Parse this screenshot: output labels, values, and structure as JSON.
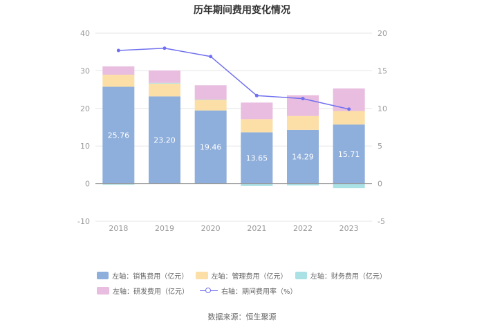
{
  "chart_data": {
    "type": "bar",
    "title": "历年期间费用变化情况",
    "categories": [
      "2018",
      "2019",
      "2020",
      "2021",
      "2022",
      "2023"
    ],
    "left_axis": {
      "ylim": [
        -10,
        40
      ],
      "ticks": [
        "-10",
        "0",
        "10",
        "20",
        "30",
        "40"
      ],
      "tick_values": [
        -10,
        0,
        10,
        20,
        30,
        40
      ]
    },
    "right_axis": {
      "ylim": [
        -5,
        20
      ],
      "ticks": [
        "-5",
        "0",
        "5",
        "10",
        "15",
        "20"
      ],
      "tick_values": [
        -5,
        0,
        5,
        10,
        15,
        20
      ]
    },
    "series": [
      {
        "name": "左轴：销售费用（亿元）",
        "kind": "bar",
        "axis": "left",
        "color": "#8eaedb",
        "values": [
          25.76,
          23.2,
          19.46,
          13.65,
          14.29,
          15.71
        ],
        "labels": [
          "25.76",
          "23.20",
          "19.46",
          "13.65",
          "14.29",
          "15.71"
        ]
      },
      {
        "name": "左轴：管理费用（亿元）",
        "kind": "bar",
        "axis": "left",
        "color": "#fbdfa6",
        "values": [
          3.2,
          3.4,
          2.8,
          3.5,
          3.7,
          3.6
        ]
      },
      {
        "name": "左轴：财务费用（亿元）",
        "kind": "bar",
        "axis": "left",
        "color": "#a9e1e5",
        "values": [
          -0.3,
          0.2,
          0.1,
          -0.6,
          -0.5,
          -1.2
        ]
      },
      {
        "name": "左轴：研发费用（亿元）",
        "kind": "bar",
        "axis": "left",
        "color": "#e8bddf",
        "values": [
          2.2,
          3.3,
          3.8,
          4.4,
          5.5,
          6.0
        ]
      },
      {
        "name": "右轴：期间费用率（%）",
        "kind": "line",
        "axis": "right",
        "color": "#7070f0",
        "values": [
          17.7,
          18.0,
          16.9,
          11.7,
          11.3,
          9.9
        ]
      }
    ]
  },
  "legend_rows": [
    [
      "左轴：销售费用（亿元）",
      "左轴：管理费用（亿元）",
      "左轴：财务费用（亿元）"
    ],
    [
      "左轴：研发费用（亿元）",
      "右轴：期间费用率（%）"
    ]
  ],
  "source": "数据来源：恒生聚源"
}
